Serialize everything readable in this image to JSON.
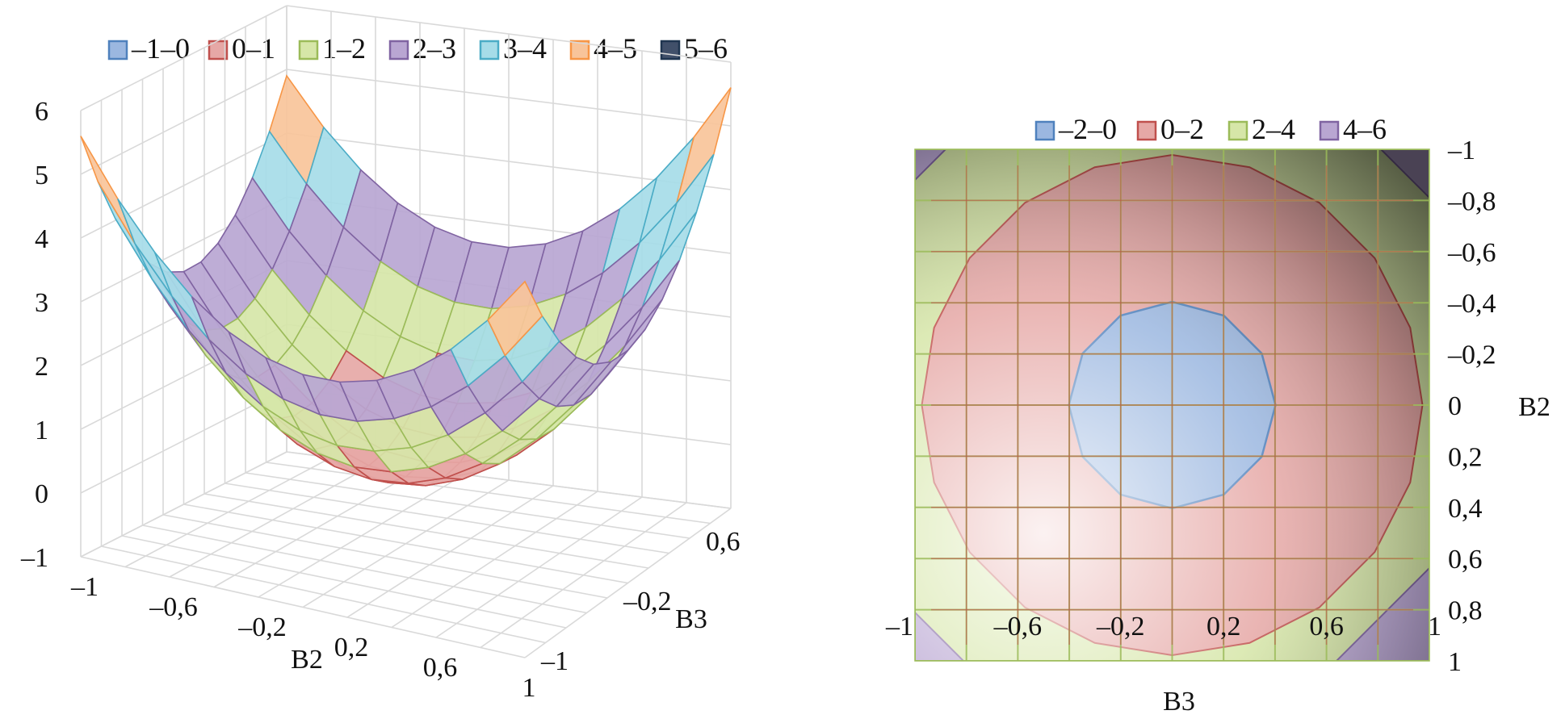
{
  "chart_data": [
    {
      "type": "surface",
      "view": "3d",
      "function_desc": "quadratic bowl surface",
      "legend_position": "top",
      "legend": [
        {
          "label": "–1–0",
          "fill": "#9bb7e0",
          "stroke": "#4f81bd"
        },
        {
          "label": "0–1",
          "fill": "#e6a8a6",
          "stroke": "#c0504d"
        },
        {
          "label": "1–2",
          "fill": "#d6e6a8",
          "stroke": "#9bbb59"
        },
        {
          "label": "2–3",
          "fill": "#b9a6d2",
          "stroke": "#8064a2"
        },
        {
          "label": "3–4",
          "fill": "#a6dce8",
          "stroke": "#4bacc6"
        },
        {
          "label": "4–5",
          "fill": "#f8c49a",
          "stroke": "#f79646"
        },
        {
          "label": "5–6",
          "fill": "#41506a",
          "stroke": "#1f3550"
        }
      ],
      "z_ticks": [
        "6",
        "5",
        "4",
        "3",
        "2",
        "1",
        "0",
        "–1"
      ],
      "x_ticks": [
        "–1",
        "–0,6",
        "–0,2",
        "0,2",
        "0,6",
        "1"
      ],
      "y_ticks": [
        "–1",
        "–0,2",
        "0,6"
      ],
      "xlabel": "B2",
      "ylabel": "B3",
      "zlim": [
        -1,
        6
      ],
      "grid": true
    },
    {
      "type": "contour",
      "view": "top",
      "legend_position": "top",
      "legend": [
        {
          "label": "–2–0",
          "fill": "#9bb7e0",
          "stroke": "#4f81bd"
        },
        {
          "label": "0–2",
          "fill": "#e6a8a6",
          "stroke": "#c0504d"
        },
        {
          "label": "2–4",
          "fill": "#d6e6a8",
          "stroke": "#9bbb59"
        },
        {
          "label": "4–6",
          "fill": "#b9a6d2",
          "stroke": "#8064a2"
        }
      ],
      "x_ticks": [
        "–1",
        "–0,6",
        "–0,2",
        "0,2",
        "0,6",
        "1"
      ],
      "y_ticks": [
        "–1",
        "–0,8",
        "–0,6",
        "–0,4",
        "–0,2",
        "0",
        "0,2",
        "0,4",
        "0,6",
        "0,8",
        "1"
      ],
      "xlabel": "B3",
      "ylabel": "B2",
      "xlim": [
        -1,
        1
      ],
      "ylim": [
        -1,
        1
      ],
      "grid": true
    }
  ]
}
